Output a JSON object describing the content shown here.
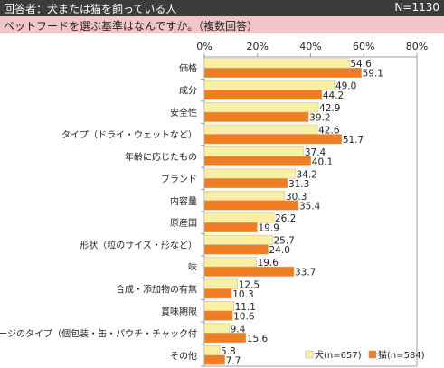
{
  "header": {
    "respondents": "回答者：犬または猫を飼っている人",
    "n": "N=1130"
  },
  "question": "ペットフードを選ぶ基準はなんですか。（複数回答）",
  "colors": {
    "dog": "#f9f0a4",
    "cat": "#f07d21"
  },
  "chart_data": {
    "type": "bar",
    "orientation": "horizontal",
    "categories": [
      "価格",
      "成分",
      "安全性",
      "タイプ（ドライ・ウェットなど）",
      "年齢に応じたもの",
      "ブランド",
      "内容量",
      "原産国",
      "形状（粒のサイズ・形など）",
      "味",
      "合成・添加物の有無",
      "賞味期限",
      "パッケージのタイプ（個包装・缶・パウチ・チャック付",
      "その他"
    ],
    "series": [
      {
        "name": "犬(n=657)",
        "values": [
          54.6,
          49.0,
          42.9,
          42.6,
          37.4,
          34.2,
          30.3,
          26.2,
          25.7,
          19.6,
          12.5,
          11.1,
          9.4,
          5.8
        ]
      },
      {
        "name": "猫(n=584)",
        "values": [
          59.1,
          44.2,
          39.2,
          51.7,
          40.1,
          31.3,
          35.4,
          19.9,
          24.0,
          33.7,
          10.3,
          10.6,
          15.6,
          7.7
        ]
      }
    ],
    "xlim": [
      0,
      80
    ],
    "ticks": [
      "0%",
      "20%",
      "40%",
      "60%",
      "80%"
    ],
    "grid": false,
    "legend": "bottom-right"
  }
}
